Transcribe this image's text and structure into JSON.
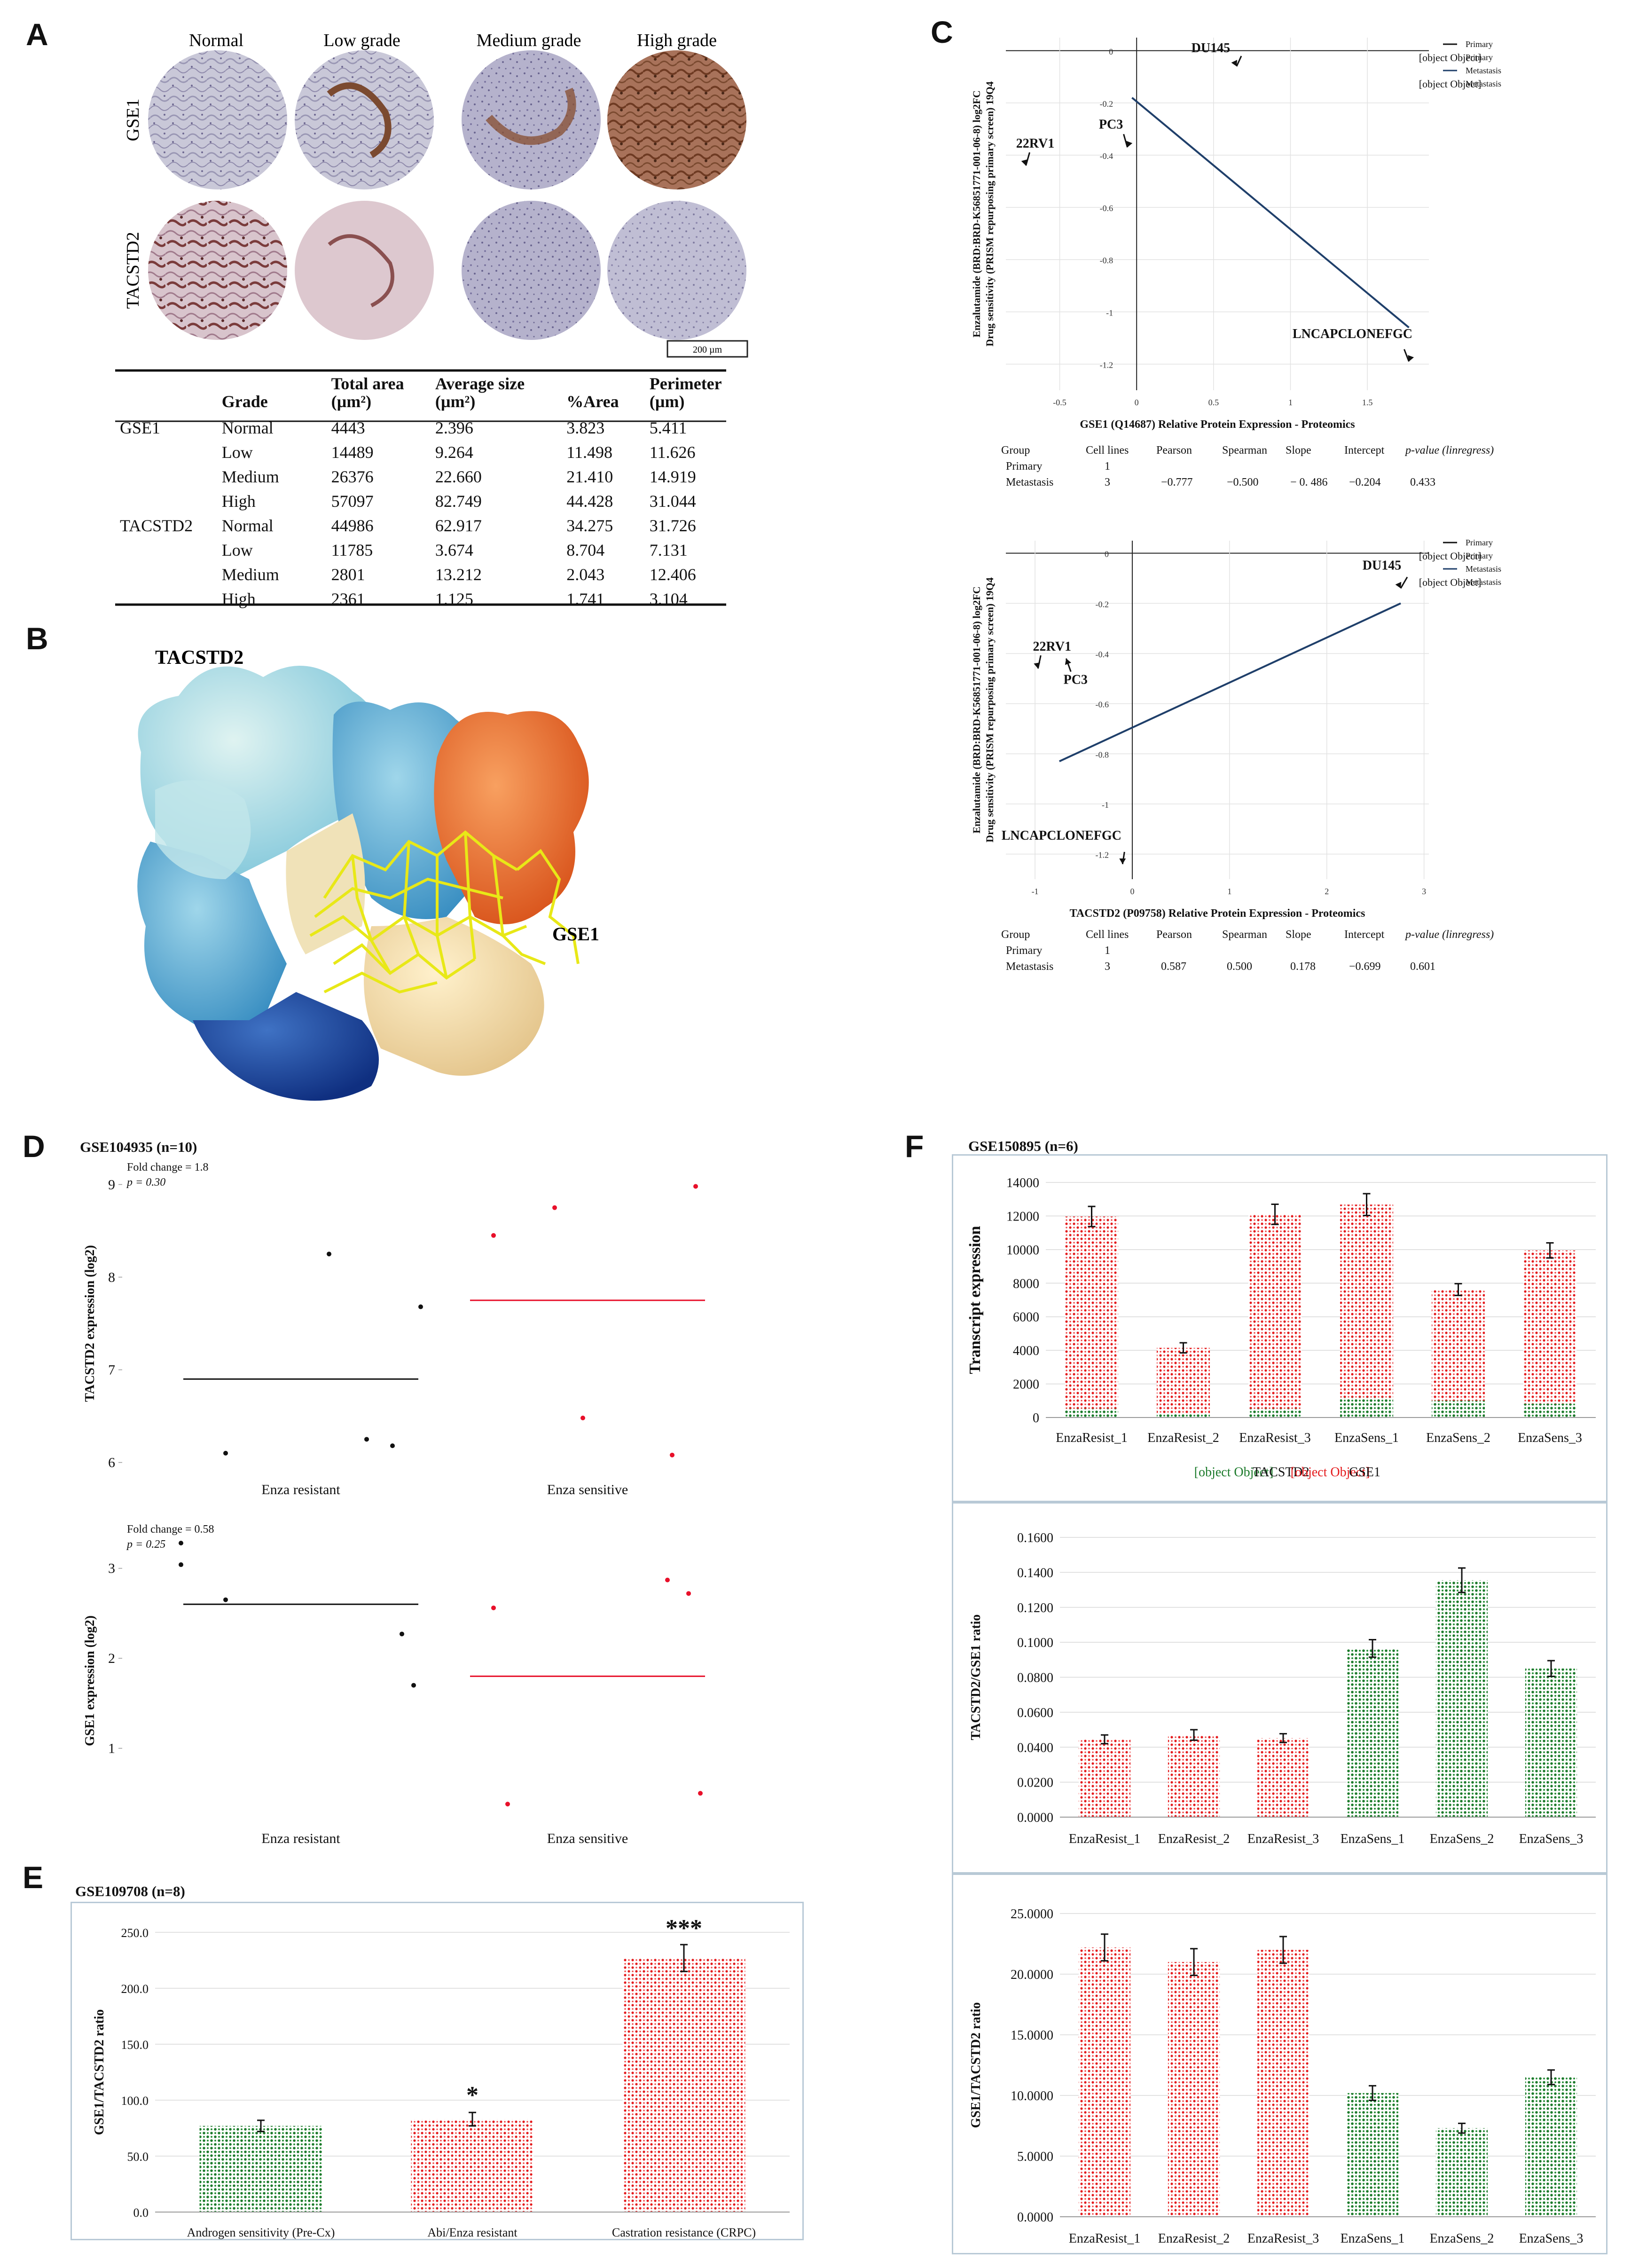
{
  "panels": {
    "A": "A",
    "B": "B",
    "C": "C",
    "D": "D",
    "E": "E",
    "F": "F"
  },
  "panel_a": {
    "columns": [
      "Normal",
      "Low grade",
      "Medium grade",
      "High grade"
    ],
    "rows": [
      "GSE1",
      "TACSTD2"
    ],
    "scale_bar": "200 µm",
    "table": {
      "headers": [
        "",
        "Grade",
        "Total area (µm²)",
        "Average size (µm²)",
        "%Area",
        "Perimeter (µm)"
      ],
      "rows": [
        [
          "GSE1",
          "Normal",
          "4443",
          "2.396",
          "3.823",
          "5.411"
        ],
        [
          "",
          "Low",
          "14489",
          "9.264",
          "11.498",
          "11.626"
        ],
        [
          "",
          "Medium",
          "26376",
          "22.660",
          "21.410",
          "14.919"
        ],
        [
          "",
          "High",
          "57097",
          "82.749",
          "44.428",
          "31.044"
        ],
        [
          "TACSTD2",
          "Normal",
          "44986",
          "62.917",
          "34.275",
          "31.726"
        ],
        [
          "",
          "Low",
          "11785",
          "3.674",
          "8.704",
          "7.131"
        ],
        [
          "",
          "Medium",
          "2801",
          "13.212",
          "2.043",
          "12.406"
        ],
        [
          "",
          "High",
          "2361",
          "1.125",
          "1.741",
          "3.104"
        ]
      ]
    }
  },
  "panel_b": {
    "labels": [
      "TACSTD2",
      "GSE1"
    ]
  },
  "panel_c": {
    "top": {
      "ylabel_1": "Enzalutamide (BRD:BRD-K56851771-001-06-8) log2FC",
      "ylabel_2": "Drug sensitivity (PRISM repurposing primary screen) 19Q4",
      "xlabel": "GSE1 (Q14687) Relative Protein Expression - Proteomics",
      "yticks": [
        "0",
        "-0.2",
        "-0.4",
        "-0.6",
        "-0.8",
        "-1",
        "-1.2"
      ],
      "xticks": [
        "-0.5",
        "0",
        "0.5",
        "1",
        "1.5"
      ],
      "points": [
        "DU145",
        "PC3",
        "22RV1",
        "LNCAPCLONEFGC"
      ],
      "legend": [
        "Primary",
        "Primary",
        "Metastasis",
        "Metastasis"
      ],
      "stats_header": [
        "Group",
        "Cell lines",
        "Pearson",
        "Spearman",
        "Slope",
        "Intercept",
        "p-value (linregress)"
      ],
      "stats_rows": [
        [
          "Primary",
          "1",
          "",
          "",
          "",
          "",
          ""
        ],
        [
          "Metastasis",
          "3",
          "−0.777",
          "−0.500",
          "− 0. 486",
          "−0.204",
          "0.433"
        ]
      ]
    },
    "bottom": {
      "ylabel_1": "Enzalutamide (BRD:BRD-K56851771-001-06-8) log2FC",
      "ylabel_2": "Drug sensitivity (PRISM repurposing primary screen) 19Q4",
      "xlabel": "TACSTD2 (P09758) Relative Protein Expression - Proteomics",
      "yticks": [
        "0",
        "-0.2",
        "-0.4",
        "-0.6",
        "-0.8",
        "-1",
        "-1.2"
      ],
      "xticks": [
        "-1",
        "0",
        "1",
        "2",
        "3"
      ],
      "points": [
        "DU145",
        "22RV1",
        "PC3",
        "LNCAPCLONEFGC"
      ],
      "legend": [
        "Primary",
        "Primary",
        "Metastasis",
        "Metastasis"
      ],
      "stats_header": [
        "Group",
        "Cell lines",
        "Pearson",
        "Spearman",
        "Slope",
        "Intercept",
        "p-value (linregress)"
      ],
      "stats_rows": [
        [
          "Primary",
          "1",
          "",
          "",
          "",
          "",
          ""
        ],
        [
          "Metastasis",
          "3",
          "0.587",
          "0.500",
          "0.178",
          "−0.699",
          "0.601"
        ]
      ]
    }
  },
  "panel_d": {
    "title": "GSE104935 (n=10)",
    "top": {
      "fold": "Fold change = 1.8",
      "p": "p = 0.30",
      "ylabel": "TACSTD2 expression (log2)",
      "yticks": [
        "9",
        "8",
        "7",
        "6"
      ],
      "groups": [
        "Enza resistant",
        "Enza sensitive"
      ]
    },
    "bottom": {
      "fold": "Fold change = 0.58",
      "p": "p = 0.25",
      "ylabel": "GSE1 expression (log2)",
      "yticks": [
        "3",
        "2",
        "1"
      ],
      "groups": [
        "Enza resistant",
        "Enza sensitive"
      ]
    }
  },
  "panel_e": {
    "title": "GSE109708 (n=8)",
    "ylabel": "GSE1/TACSTD2 ratio",
    "sig": [
      "*",
      "***"
    ]
  },
  "panel_f": {
    "title": "GSE150895 (n=6)",
    "top_ylabel": "Transcript expression",
    "legend": [
      "TACSTD2",
      "GSE1"
    ],
    "mid_ylabel": "TACSTD2/GSE1 ratio",
    "bot_ylabel": "GSE1/TACSTD2 ratio"
  },
  "chart_data": [
    {
      "id": "C-top",
      "type": "scatter",
      "title": "",
      "xlabel": "GSE1 (Q14687) Relative Protein Expression - Proteomics",
      "ylabel": "Enzalutamide log2FC",
      "xlim": [
        -0.85,
        1.9
      ],
      "ylim": [
        -1.3,
        0.05
      ],
      "points": [
        {
          "label": "DU145",
          "x": 0.65,
          "y": -0.06
        },
        {
          "label": "PC3",
          "x": -0.06,
          "y": -0.37
        },
        {
          "label": "22RV1",
          "x": -0.72,
          "y": -0.44
        },
        {
          "label": "LNCAPCLONEFGC",
          "x": 1.77,
          "y": -1.19
        }
      ],
      "fit_line": {
        "x": [
          -0.03,
          1.77
        ],
        "y": [
          -0.18,
          -1.06
        ]
      }
    },
    {
      "id": "C-bottom",
      "type": "scatter",
      "title": "",
      "xlabel": "TACSTD2 (P09758) Relative Protein Expression - Proteomics",
      "ylabel": "Enzalutamide log2FC",
      "xlim": [
        -1.3,
        3.05
      ],
      "ylim": [
        -1.3,
        0.05
      ],
      "points": [
        {
          "label": "DU145",
          "x": 2.76,
          "y": -0.14
        },
        {
          "label": "22RV1",
          "x": -0.97,
          "y": -0.46
        },
        {
          "label": "PC3",
          "x": -0.68,
          "y": -0.42
        },
        {
          "label": "LNCAPCLONEFGC",
          "x": -0.1,
          "y": -1.24
        }
      ],
      "fit_line": {
        "x": [
          -0.75,
          2.76
        ],
        "y": [
          -0.83,
          -0.2
        ]
      }
    },
    {
      "id": "D-top",
      "type": "scatter",
      "ylabel": "TACSTD2 expression (log2)",
      "ylim": [
        5.8,
        9.2
      ],
      "groups": [
        {
          "name": "Enza resistant",
          "color": "#111111",
          "mean": 6.9,
          "values": [
            6.1,
            8.25,
            6.25,
            6.18,
            7.68
          ]
        },
        {
          "name": "Enza sensitive",
          "color": "#e8102a",
          "mean": 7.75,
          "values": [
            8.45,
            8.75,
            6.48,
            6.08,
            8.98
          ]
        }
      ]
    },
    {
      "id": "D-bottom",
      "type": "scatter",
      "ylabel": "GSE1 expression (log2)",
      "ylim": [
        0,
        3.5
      ],
      "groups": [
        {
          "name": "Enza resistant",
          "color": "#111111",
          "mean": 2.6,
          "values": [
            3.28,
            3.04,
            2.65,
            2.27,
            1.7
          ]
        },
        {
          "name": "Enza sensitive",
          "color": "#e8102a",
          "mean": 1.8,
          "values": [
            2.56,
            0.38,
            2.87,
            2.72,
            0.5
          ]
        }
      ]
    },
    {
      "id": "E",
      "type": "bar",
      "title": "GSE109708 (n=8)",
      "ylabel": "GSE1/TACSTD2 ratio",
      "ylim": [
        0,
        250
      ],
      "yticks": [
        "0.0",
        "50.0",
        "100.0",
        "150.0",
        "200.0",
        "250.0"
      ],
      "categories": [
        "Androgen sensitivity (Pre-Cx)",
        "Abi/Enza resistant",
        "Castration resistance (CRPC)"
      ],
      "values": [
        77,
        83,
        227
      ],
      "errors": [
        5,
        6,
        12
      ],
      "colors": [
        "green",
        "red",
        "red"
      ]
    },
    {
      "id": "F-top",
      "type": "bar",
      "title": "GSE150895 (n=6)",
      "ylabel": "Transcript expression",
      "ylim": [
        0,
        14000
      ],
      "yticks": [
        "0",
        "2000",
        "4000",
        "6000",
        "8000",
        "10000",
        "12000",
        "14000"
      ],
      "categories": [
        "EnzaResist_1",
        "EnzaResist_2",
        "EnzaResist_3",
        "EnzaSens_1",
        "EnzaSens_2",
        "EnzaSens_3"
      ],
      "series": [
        {
          "name": "TACSTD2",
          "values": [
            520,
            190,
            520,
            1180,
            1000,
            820
          ]
        },
        {
          "name": "GSE1",
          "values": [
            11450,
            3960,
            11580,
            11500,
            6620,
            9130
          ]
        }
      ],
      "errors": [
        600,
        300,
        600,
        650,
        350,
        450
      ]
    },
    {
      "id": "F-mid",
      "type": "bar",
      "ylabel": "TACSTD2/GSE1 ratio",
      "ylim": [
        0,
        0.16
      ],
      "yticks": [
        "0.0000",
        "0.0200",
        "0.0400",
        "0.0600",
        "0.0800",
        "0.1000",
        "0.1200",
        "0.1400",
        "0.1600"
      ],
      "categories": [
        "EnzaResist_1",
        "EnzaResist_2",
        "EnzaResist_3",
        "EnzaSens_1",
        "EnzaSens_2",
        "EnzaSens_3"
      ],
      "values": [
        0.0445,
        0.047,
        0.0452,
        0.0965,
        0.1355,
        0.085
      ],
      "errors": [
        0.0025,
        0.003,
        0.0025,
        0.005,
        0.007,
        0.0045
      ],
      "colors": [
        "red",
        "red",
        "red",
        "green",
        "green",
        "green"
      ]
    },
    {
      "id": "F-bottom",
      "type": "bar",
      "ylabel": "GSE1/TACSTD2 ratio",
      "ylim": [
        0,
        25
      ],
      "yticks": [
        "0.0000",
        "5.0000",
        "10.0000",
        "15.0000",
        "20.0000",
        "25.0000"
      ],
      "categories": [
        "EnzaResist_1",
        "EnzaResist_2",
        "EnzaResist_3",
        "EnzaSens_1",
        "EnzaSens_2",
        "EnzaSens_3"
      ],
      "values": [
        22.2,
        21,
        22,
        10.2,
        7.3,
        11.5
      ],
      "errors": [
        1.1,
        1.1,
        1.1,
        0.6,
        0.4,
        0.6
      ],
      "colors": [
        "red",
        "red",
        "red",
        "green",
        "green",
        "green"
      ]
    }
  ]
}
